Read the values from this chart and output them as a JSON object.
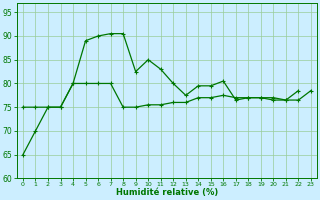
{
  "x": [
    0,
    1,
    2,
    3,
    4,
    5,
    6,
    7,
    8,
    9,
    10,
    11,
    12,
    13,
    14,
    15,
    16,
    17,
    18,
    19,
    20,
    21,
    22,
    23
  ],
  "line1": [
    65,
    70,
    75,
    75,
    80,
    89,
    90,
    90.5,
    90.5,
    82.5,
    85,
    83,
    80,
    77.5,
    79.5,
    79.5,
    80.5,
    76.5,
    77,
    77,
    76.5,
    76.5,
    78.5,
    null
  ],
  "line2": [
    75,
    75,
    75,
    75,
    80,
    80,
    80,
    80,
    75,
    75,
    75.5,
    75.5,
    76,
    76,
    77,
    77,
    77.5,
    77,
    77,
    77,
    77,
    76.5,
    76.5,
    78.5
  ],
  "bg_color": "#cceeff",
  "grid_color": "#99cc99",
  "line_color": "#007700",
  "xlabel": "Humidité relative (%)",
  "ylim": [
    60,
    97
  ],
  "yticks": [
    60,
    65,
    70,
    75,
    80,
    85,
    90,
    95
  ],
  "xlim": [
    -0.5,
    23.5
  ],
  "xticks": [
    0,
    1,
    2,
    3,
    4,
    5,
    6,
    7,
    8,
    9,
    10,
    11,
    12,
    13,
    14,
    15,
    16,
    17,
    18,
    19,
    20,
    21,
    22,
    23
  ]
}
